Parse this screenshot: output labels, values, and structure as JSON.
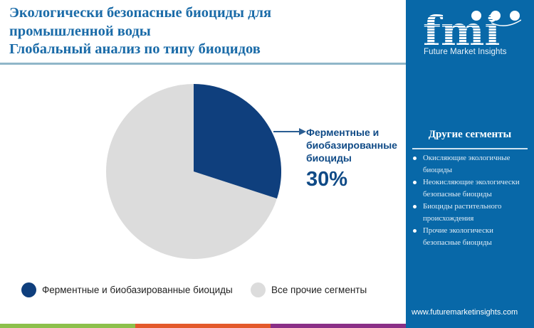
{
  "title": {
    "line1": "Экологически безопасные биоциды для",
    "line2": "промышленной воды",
    "line3": "Глобальный анализ по типу биоцидов"
  },
  "callout": {
    "label_line1": "Ферментные и",
    "label_line2": "биобазированные",
    "label_line3": "биоциды",
    "percent": "30%"
  },
  "legend": {
    "items": [
      {
        "label": "Ферментные и биобазированные биоциды",
        "color": "#0f3f7d"
      },
      {
        "label": "Все прочие сегменты",
        "color": "#dcdcdc"
      }
    ]
  },
  "sidebar": {
    "logo_text": "fmi",
    "logo_subtitle": "Future Market Insights",
    "heading": "Другие сегменты",
    "items": [
      {
        "label": "Окисляющие экологичные биоциды"
      },
      {
        "label": "Неокисляющие экологически безопасные биоциды"
      },
      {
        "label": "Биоциды растительного происхождения"
      },
      {
        "label": "Прочие экологически безопасные биоциды"
      }
    ],
    "website": "www.futuremarketinsights.com",
    "background": "#0868a8"
  },
  "colors": {
    "title": "#1a6ba8",
    "highlight_slice": "#0f3f7d",
    "other_slice": "#dcdcdc",
    "stripe": [
      "#8cc04b",
      "#e3592b",
      "#8a2f86"
    ]
  },
  "chart_data": {
    "type": "pie",
    "title": "Экологически безопасные биоциды для промышленной воды — Глобальный анализ по типу биоцидов",
    "categories": [
      "Ферментные и биобазированные биоциды",
      "Все прочие сегменты"
    ],
    "values": [
      30,
      70
    ],
    "unit": "%",
    "colors": [
      "#0f3f7d",
      "#dcdcdc"
    ],
    "start_angle_deg": 90,
    "direction": "clockwise",
    "annotations": [
      {
        "target": "Ферментные и биобазированные биоциды",
        "text": "30%"
      }
    ],
    "legend_position": "bottom"
  }
}
